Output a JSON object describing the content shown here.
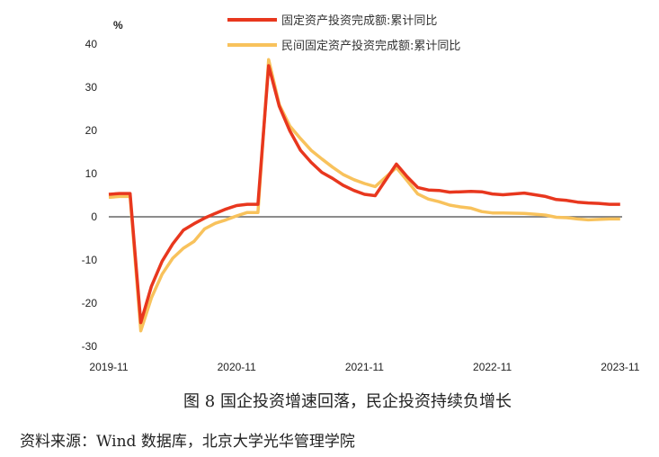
{
  "chart_data": {
    "type": "line",
    "ylabel": "%",
    "ylim": [
      -30,
      40
    ],
    "yticks": [
      40,
      30,
      20,
      10,
      0,
      -10,
      -20,
      -30
    ],
    "xticks": [
      "2019-11",
      "2020-11",
      "2021-11",
      "2022-11",
      "2023-11"
    ],
    "grid": false,
    "legend": "top",
    "series": [
      {
        "name": "固定资产投资完成额:累计同比",
        "color": "#e8371e",
        "points": [
          [
            "2019-11",
            5.2
          ],
          [
            "2019-12",
            5.4
          ],
          [
            "2020-01",
            5.4
          ],
          [
            "2020-02",
            -24.5
          ],
          [
            "2020-03",
            -16.1
          ],
          [
            "2020-04",
            -10.3
          ],
          [
            "2020-05",
            -6.3
          ],
          [
            "2020-06",
            -3.1
          ],
          [
            "2020-07",
            -1.6
          ],
          [
            "2020-08",
            -0.3
          ],
          [
            "2020-09",
            0.8
          ],
          [
            "2020-10",
            1.8
          ],
          [
            "2020-11",
            2.6
          ],
          [
            "2020-12",
            2.9
          ],
          [
            "2021-01",
            2.9
          ],
          [
            "2021-02",
            35.0
          ],
          [
            "2021-03",
            25.6
          ],
          [
            "2021-04",
            19.9
          ],
          [
            "2021-05",
            15.4
          ],
          [
            "2021-06",
            12.6
          ],
          [
            "2021-07",
            10.3
          ],
          [
            "2021-08",
            8.9
          ],
          [
            "2021-09",
            7.3
          ],
          [
            "2021-10",
            6.1
          ],
          [
            "2021-11",
            5.2
          ],
          [
            "2021-12",
            4.9
          ],
          [
            "2022-02",
            12.2
          ],
          [
            "2022-03",
            9.3
          ],
          [
            "2022-04",
            6.8
          ],
          [
            "2022-05",
            6.2
          ],
          [
            "2022-06",
            6.1
          ],
          [
            "2022-07",
            5.7
          ],
          [
            "2022-08",
            5.8
          ],
          [
            "2022-09",
            5.9
          ],
          [
            "2022-10",
            5.8
          ],
          [
            "2022-11",
            5.3
          ],
          [
            "2022-12",
            5.1
          ],
          [
            "2023-02",
            5.5
          ],
          [
            "2023-03",
            5.1
          ],
          [
            "2023-04",
            4.7
          ],
          [
            "2023-05",
            4.0
          ],
          [
            "2023-06",
            3.8
          ],
          [
            "2023-07",
            3.4
          ],
          [
            "2023-08",
            3.2
          ],
          [
            "2023-09",
            3.1
          ],
          [
            "2023-10",
            2.9
          ],
          [
            "2023-11",
            2.9
          ]
        ]
      },
      {
        "name": "民间固定资产投资完成额:累计同比",
        "color": "#f8c25c",
        "points": [
          [
            "2019-11",
            4.5
          ],
          [
            "2019-12",
            4.7
          ],
          [
            "2020-01",
            4.7
          ],
          [
            "2020-02",
            -26.4
          ],
          [
            "2020-03",
            -18.8
          ],
          [
            "2020-04",
            -13.3
          ],
          [
            "2020-05",
            -9.6
          ],
          [
            "2020-06",
            -7.3
          ],
          [
            "2020-07",
            -5.7
          ],
          [
            "2020-08",
            -2.8
          ],
          [
            "2020-09",
            -1.5
          ],
          [
            "2020-10",
            -0.7
          ],
          [
            "2020-11",
            0.2
          ],
          [
            "2020-12",
            1.0
          ],
          [
            "2021-01",
            1.0
          ],
          [
            "2021-02",
            36.4
          ],
          [
            "2021-03",
            26.0
          ],
          [
            "2021-04",
            21.0
          ],
          [
            "2021-05",
            18.1
          ],
          [
            "2021-06",
            15.4
          ],
          [
            "2021-07",
            13.4
          ],
          [
            "2021-08",
            11.5
          ],
          [
            "2021-09",
            9.8
          ],
          [
            "2021-10",
            8.6
          ],
          [
            "2021-11",
            7.7
          ],
          [
            "2021-12",
            7.0
          ],
          [
            "2022-02",
            11.4
          ],
          [
            "2022-03",
            8.4
          ],
          [
            "2022-04",
            5.3
          ],
          [
            "2022-05",
            4.1
          ],
          [
            "2022-06",
            3.5
          ],
          [
            "2022-07",
            2.7
          ],
          [
            "2022-08",
            2.3
          ],
          [
            "2022-09",
            2.0
          ],
          [
            "2022-10",
            1.2
          ],
          [
            "2022-11",
            0.9
          ],
          [
            "2022-12",
            0.9
          ],
          [
            "2023-02",
            0.8
          ],
          [
            "2023-03",
            0.6
          ],
          [
            "2023-04",
            0.4
          ],
          [
            "2023-05",
            -0.1
          ],
          [
            "2023-06",
            -0.2
          ],
          [
            "2023-07",
            -0.5
          ],
          [
            "2023-08",
            -0.7
          ],
          [
            "2023-09",
            -0.6
          ],
          [
            "2023-10",
            -0.5
          ],
          [
            "2023-11",
            -0.5
          ]
        ]
      }
    ]
  },
  "caption": "图 8 国企投资增速回落，民企投资持续负增长",
  "source": "资料来源：Wind 数据库，北京大学光华管理学院"
}
